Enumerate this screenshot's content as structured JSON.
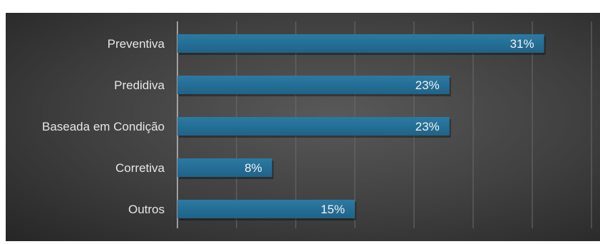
{
  "chart_data": {
    "type": "bar",
    "orientation": "horizontal",
    "title": "",
    "categories": [
      "Preventiva",
      "Predidiva",
      "Baseada em Condição",
      "Corretiva",
      "Outros"
    ],
    "values": [
      31,
      23,
      23,
      8,
      15
    ],
    "value_labels": [
      "31%",
      "23%",
      "23%",
      "8%",
      "15%"
    ],
    "xlim": [
      0,
      35
    ],
    "grid": true,
    "legend": "none",
    "colors": {
      "bar": "#1f6388",
      "bar_highlight": "#2b7aa3",
      "background": "#3f3f3f",
      "grid": "#6a6a6a",
      "axis": "#bfbfbf"
    }
  }
}
